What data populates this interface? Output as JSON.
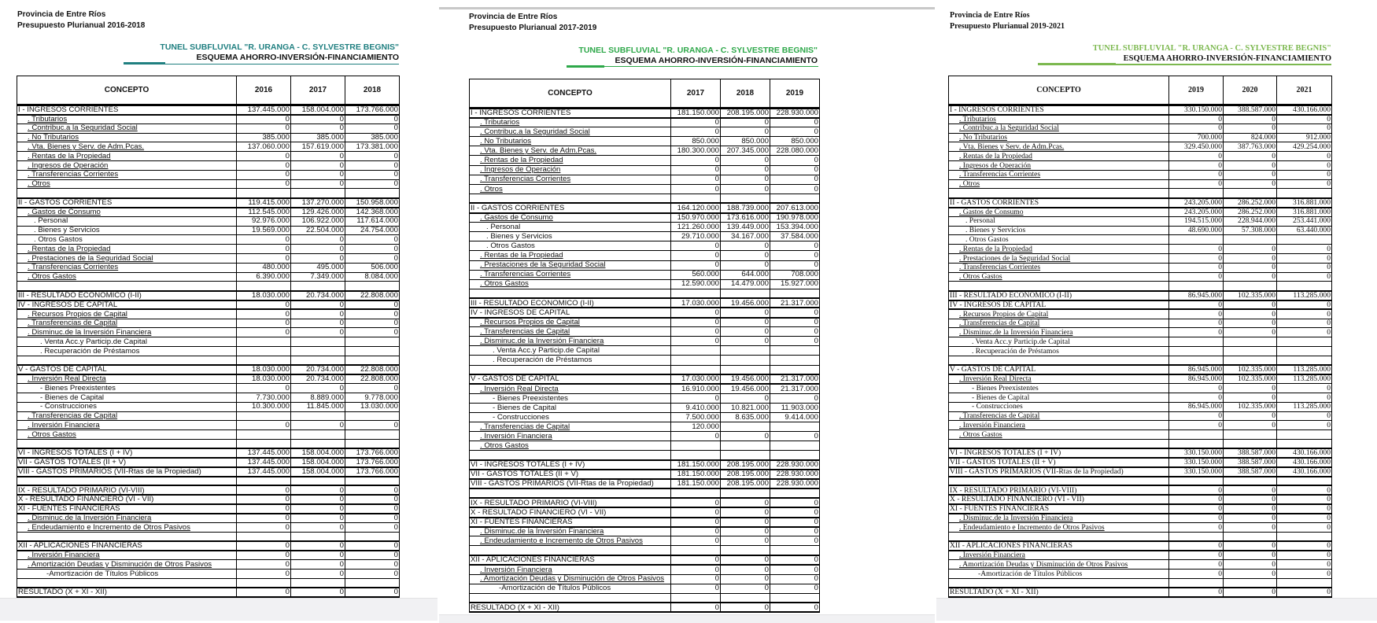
{
  "common": {
    "province": "Provincia de Entre Ríos",
    "entity": "TUNEL SUBFLUVIAL \"R. URANGA - C. SYLVESTRE BEGNIS\"",
    "scheme": "ESQUEMA AHORRO-INVERSIÓN-FINANCIAMIENTO",
    "concept_header": "CONCEPTO"
  },
  "row_labels": [
    "I  - INGRESOS CORRIENTES",
    ". Tributarios",
    ". Contribuc.a la Seguridad Social",
    ". No Tributarios",
    ". Vta. Bienes y Serv. de Adm.Pcas.",
    ". Rentas de la Propiedad",
    ". Ingresos de Operación",
    ". Transferencias Corrientes",
    ". Otros",
    "",
    "II  - GASTOS CORRIENTES",
    ". Gastos de Consumo",
    ". Personal",
    ". Bienes y Servicios",
    ". Otros Gastos",
    ". Rentas de la Propiedad",
    ". Prestaciones de la Seguridad Social",
    ". Transferencias Corrientes",
    ". Otros Gastos",
    "",
    "III - RESULTADO ECONOMICO (I-II)",
    "IV - INGRESOS DE CAPITAL",
    ". Recursos Propios de Capital",
    ". Transferencias de Capital",
    ". Disminuc.de la Inversión Financiera",
    ". Venta Acc.y Particip.de Capital",
    ". Recuperación de Préstamos",
    "",
    "V  - GASTOS DE CAPITAL",
    ". Inversión Real Directa",
    "- Bienes Preexistentes",
    "- Bienes de Capital",
    "- Construcciones",
    ". Transferencias de Capital",
    ". Inversión Financiera",
    ". Otros Gastos",
    "",
    "VI - INGRESOS TOTALES (I + IV)",
    "VII - GASTOS TOTALES (II + V)",
    "VIII - GASTOS PRIMARIOS (VII-Rtas de la Propiedad)",
    "",
    "IX - RESULTADO PRIMARIO (VI-VIII)",
    "X - RESULTADO FINANCIERO (VI - VII)",
    "XI - FUENTES FINANCIERAS",
    ". Disminuc.de la Inversión Financiera",
    ". Endeudamiento e Incremento de Otros Pasivos",
    "",
    "XII - APLICACIONES FINANCIERAS",
    ". Inversión Financiera",
    ". Amortización Deudas y Disminución de Otros Pasivos",
    "-Amortización de Títulos Públicos",
    "",
    "RESULTADO  (X + XI - XII)"
  ],
  "panels": [
    {
      "subtitle": "Presupuesto Plurianual 2016-2018",
      "accent_color": "#1f7f80",
      "years": [
        "2016",
        "2017",
        "2018"
      ],
      "values": [
        [
          "137.445.000",
          "158.004.000",
          "173.766.000"
        ],
        [
          "0",
          "0",
          "0"
        ],
        [
          "0",
          "0",
          "0"
        ],
        [
          "385.000",
          "385.000",
          "385.000"
        ],
        [
          "137.060.000",
          "157.619.000",
          "173.381.000"
        ],
        [
          "0",
          "0",
          "0"
        ],
        [
          "0",
          "0",
          "0"
        ],
        [
          "0",
          "0",
          "0"
        ],
        [
          "0",
          "0",
          "0"
        ],
        [
          "",
          "",
          ""
        ],
        [
          "119.415.000",
          "137.270.000",
          "150.958.000"
        ],
        [
          "112.545.000",
          "129.426.000",
          "142.368.000"
        ],
        [
          "92.976.000",
          "106.922.000",
          "117.614.000"
        ],
        [
          "19.569.000",
          "22.504.000",
          "24.754.000"
        ],
        [
          "0",
          "0",
          "0"
        ],
        [
          "0",
          "0",
          "0"
        ],
        [
          "0",
          "0",
          "0"
        ],
        [
          "480.000",
          "495.000",
          "506.000"
        ],
        [
          "6.390.000",
          "7.349.000",
          "8.084.000"
        ],
        [
          "",
          "",
          ""
        ],
        [
          "18.030.000",
          "20.734.000",
          "22.808.000"
        ],
        [
          "0",
          "0",
          "0"
        ],
        [
          "0",
          "0",
          "0"
        ],
        [
          "0",
          "0",
          "0"
        ],
        [
          "0",
          "0",
          "0"
        ],
        [
          "",
          "",
          ""
        ],
        [
          "",
          "",
          ""
        ],
        [
          "",
          "",
          ""
        ],
        [
          "18.030.000",
          "20.734.000",
          "22.808.000"
        ],
        [
          "18.030.000",
          "20.734.000",
          "22.808.000"
        ],
        [
          "0",
          "0",
          "0"
        ],
        [
          "7.730.000",
          "8.889.000",
          "9.778.000"
        ],
        [
          "10.300.000",
          "11.845.000",
          "13.030.000"
        ],
        [
          "",
          "",
          ""
        ],
        [
          "0",
          "0",
          "0"
        ],
        [
          "",
          "",
          ""
        ],
        [
          "",
          "",
          ""
        ],
        [
          "137.445.000",
          "158.004.000",
          "173.766.000"
        ],
        [
          "137.445.000",
          "158.004.000",
          "173.766.000"
        ],
        [
          "137.445.000",
          "158.004.000",
          "173.766.000"
        ],
        [
          "",
          "",
          ""
        ],
        [
          "0",
          "0",
          "0"
        ],
        [
          "0",
          "0",
          "0"
        ],
        [
          "0",
          "0",
          "0"
        ],
        [
          "0",
          "0",
          "0"
        ],
        [
          "0",
          "0",
          "0"
        ],
        [
          "",
          "",
          ""
        ],
        [
          "0",
          "0",
          "0"
        ],
        [
          "0",
          "0",
          "0"
        ],
        [
          "0",
          "0",
          "0"
        ],
        [
          "0",
          "0",
          "0"
        ],
        [
          "",
          "",
          ""
        ],
        [
          "0",
          "0",
          "0"
        ]
      ]
    },
    {
      "subtitle": "Presupuesto Plurianual 2017-2019",
      "accent_color": "#2ea84a",
      "years": [
        "2017",
        "2018",
        "2019"
      ],
      "values": [
        [
          "181.150.000",
          "208.195.000",
          "228.930.000"
        ],
        [
          "0",
          "0",
          "0"
        ],
        [
          "0",
          "0",
          "0"
        ],
        [
          "850.000",
          "850.000",
          "850.000"
        ],
        [
          "180.300.000",
          "207.345.000",
          "228.080.000"
        ],
        [
          "0",
          "0",
          "0"
        ],
        [
          "0",
          "0",
          "0"
        ],
        [
          "0",
          "0",
          "0"
        ],
        [
          "0",
          "0",
          "0"
        ],
        [
          "",
          "",
          ""
        ],
        [
          "164.120.000",
          "188.739.000",
          "207.613.000"
        ],
        [
          "150.970.000",
          "173.616.000",
          "190.978.000"
        ],
        [
          "121.260.000",
          "139.449.000",
          "153.394.000"
        ],
        [
          "29.710.000",
          "34.167.000",
          "37.584.000"
        ],
        [
          "0",
          "0",
          "0"
        ],
        [
          "0",
          "0",
          "0"
        ],
        [
          "0",
          "0",
          "0"
        ],
        [
          "560.000",
          "644.000",
          "708.000"
        ],
        [
          "12.590.000",
          "14.479.000",
          "15.927.000"
        ],
        [
          "",
          "",
          ""
        ],
        [
          "17.030.000",
          "19.456.000",
          "21.317.000"
        ],
        [
          "0",
          "0",
          "0"
        ],
        [
          "0",
          "0",
          "0"
        ],
        [
          "0",
          "0",
          "0"
        ],
        [
          "0",
          "0",
          "0"
        ],
        [
          "",
          "",
          ""
        ],
        [
          "",
          "",
          ""
        ],
        [
          "",
          "",
          ""
        ],
        [
          "17.030.000",
          "19.456.000",
          "21.317.000"
        ],
        [
          "16.910.000",
          "19.456.000",
          "21.317.000"
        ],
        [
          "0",
          "0",
          "0"
        ],
        [
          "9.410.000",
          "10.821.000",
          "11.903.000"
        ],
        [
          "7.500.000",
          "8.635.000",
          "9.414.000"
        ],
        [
          "120.000",
          "",
          ""
        ],
        [
          "0",
          "0",
          "0"
        ],
        [
          "",
          "",
          ""
        ],
        [
          "",
          "",
          ""
        ],
        [
          "181.150.000",
          "208.195.000",
          "228.930.000"
        ],
        [
          "181.150.000",
          "208.195.000",
          "228.930.000"
        ],
        [
          "181.150.000",
          "208.195.000",
          "228.930.000"
        ],
        [
          "",
          "",
          ""
        ],
        [
          "0",
          "0",
          "0"
        ],
        [
          "0",
          "0",
          "0"
        ],
        [
          "0",
          "0",
          "0"
        ],
        [
          "0",
          "0",
          "0"
        ],
        [
          "0",
          "0",
          "0"
        ],
        [
          "",
          "",
          ""
        ],
        [
          "0",
          "0",
          "0"
        ],
        [
          "0",
          "0",
          "0"
        ],
        [
          "0",
          "0",
          "0"
        ],
        [
          "0",
          "0",
          "0"
        ],
        [
          "",
          "",
          ""
        ],
        [
          "0",
          "0",
          "0"
        ]
      ]
    },
    {
      "subtitle": "Presupuesto Plurianual 2019-2021",
      "accent_color": "#7cb84f",
      "years": [
        "2019",
        "2020",
        "2021"
      ],
      "values": [
        [
          "330.150.000",
          "388.587.000",
          "430.166.000"
        ],
        [
          "0",
          "0",
          "0"
        ],
        [
          "0",
          "0",
          "0"
        ],
        [
          "700.000",
          "824.000",
          "912.000"
        ],
        [
          "329.450.000",
          "387.763.000",
          "429.254.000"
        ],
        [
          "0",
          "0",
          "0"
        ],
        [
          "0",
          "0",
          "0"
        ],
        [
          "0",
          "0",
          "0"
        ],
        [
          "0",
          "0",
          "0"
        ],
        [
          "",
          "",
          ""
        ],
        [
          "243.205.000",
          "286.252.000",
          "316.881.000"
        ],
        [
          "243.205.000",
          "286.252.000",
          "316.881.000"
        ],
        [
          "194.515.000",
          "228.944.000",
          "253.441.000"
        ],
        [
          "48.690.000",
          "57.308.000",
          "63.440.000"
        ],
        [
          "",
          "",
          ""
        ],
        [
          "0",
          "0",
          "0"
        ],
        [
          "0",
          "0",
          "0"
        ],
        [
          "0",
          "0",
          "0"
        ],
        [
          "0",
          "0",
          "0"
        ],
        [
          "",
          "",
          ""
        ],
        [
          "86.945.000",
          "102.335.000",
          "113.285.000"
        ],
        [
          "0",
          "0",
          "0"
        ],
        [
          "0",
          "0",
          "0"
        ],
        [
          "0",
          "0",
          "0"
        ],
        [
          "0",
          "0",
          "0"
        ],
        [
          "",
          "",
          ""
        ],
        [
          "",
          "",
          ""
        ],
        [
          "",
          "",
          ""
        ],
        [
          "86.945.000",
          "102.335.000",
          "113.285.000"
        ],
        [
          "86.945.000",
          "102.335.000",
          "113.285.000"
        ],
        [
          "0",
          "0",
          "0"
        ],
        [
          "0",
          "0",
          "0"
        ],
        [
          "86.945.000",
          "102.335.000",
          "113.285.000"
        ],
        [
          "0",
          "0",
          "0"
        ],
        [
          "0",
          "0",
          "0"
        ],
        [
          "",
          "",
          ""
        ],
        [
          "",
          "",
          ""
        ],
        [
          "330.150.000",
          "388.587.000",
          "430.166.000"
        ],
        [
          "330.150.000",
          "388.587.000",
          "430.166.000"
        ],
        [
          "330.150.000",
          "388.587.000",
          "430.166.000"
        ],
        [
          "",
          "",
          ""
        ],
        [
          "0",
          "0",
          "0"
        ],
        [
          "0",
          "0",
          "0"
        ],
        [
          "0",
          "0",
          "0"
        ],
        [
          "0",
          "0",
          "0"
        ],
        [
          "0",
          "0",
          "0"
        ],
        [
          "",
          "",
          ""
        ],
        [
          "0",
          "0",
          "0"
        ],
        [
          "0",
          "0",
          "0"
        ],
        [
          "0",
          "0",
          "0"
        ],
        [
          "0",
          "0",
          "0"
        ],
        [
          "",
          "",
          ""
        ],
        [
          "0",
          "0",
          "0"
        ]
      ]
    }
  ]
}
